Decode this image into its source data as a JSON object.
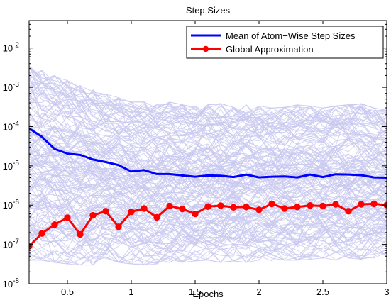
{
  "chart_data": {
    "type": "line",
    "title": "Step Sizes",
    "xlabel": "Epochs",
    "ylabel": "",
    "xlim": [
      0.2,
      3.0
    ],
    "ylim": [
      1e-08,
      0.05
    ],
    "yscale": "log",
    "grid": false,
    "legend_position": "top-right",
    "x_ticks": [
      0.5,
      1,
      1.5,
      2,
      2.5,
      3
    ],
    "x_tick_labels": [
      "0.5",
      "1",
      "1.5",
      "2",
      "2.5",
      "3"
    ],
    "y_ticks": [
      1e-08,
      1e-07,
      1e-06,
      1e-05,
      0.0001,
      0.001,
      0.01
    ],
    "y_tick_exponents": [
      "-8",
      "-7",
      "-6",
      "-5",
      "-4",
      "-3",
      "-2"
    ],
    "y_tick_base": "10",
    "x": [
      0.2,
      0.3,
      0.4,
      0.5,
      0.6,
      0.7,
      0.8,
      0.9,
      1.0,
      1.1,
      1.2,
      1.3,
      1.4,
      1.5,
      1.6,
      1.7,
      1.8,
      1.9,
      2.0,
      2.1,
      2.2,
      2.3,
      2.4,
      2.5,
      2.6,
      2.7,
      2.8,
      2.9,
      3.0
    ],
    "series": [
      {
        "name": "Mean of Atom−Wise Step Sizes",
        "color": "#0000ff",
        "marker": "none",
        "values": [
          9e-05,
          5.5e-05,
          2.7e-05,
          2.05e-05,
          1.9e-05,
          1.45e-05,
          1.25e-05,
          1.05e-05,
          7.2e-06,
          7.8e-06,
          6.2e-06,
          6.2e-06,
          5.7e-06,
          5.3e-06,
          5.7e-06,
          5.6e-06,
          5.2e-06,
          6e-06,
          5.1e-06,
          5.3e-06,
          5.4e-06,
          5.1e-06,
          6e-06,
          5.2e-06,
          6.1e-06,
          6e-06,
          5.8e-06,
          5.1e-06,
          5e-06
        ]
      },
      {
        "name": "Global Approximation",
        "color": "#ff0000",
        "marker": "circle",
        "values": [
          9e-08,
          1.9e-07,
          3.2e-07,
          4.8e-07,
          1.8e-07,
          5.5e-07,
          7e-07,
          2.8e-07,
          6.8e-07,
          8.2e-07,
          4.9e-07,
          9.5e-07,
          8e-07,
          6e-07,
          9.2e-07,
          9.7e-07,
          8.8e-07,
          9e-07,
          7.6e-07,
          1.08e-06,
          8.2e-07,
          9e-07,
          9.8e-07,
          9.5e-07,
          1.05e-06,
          7e-07,
          1.05e-06,
          1.08e-06,
          1e-06
        ]
      }
    ],
    "background_band": {
      "description": "many per-atom step size trajectories",
      "color": "#c8c8f0",
      "upper": [
        0.0028,
        0.0022,
        0.0016,
        0.0012,
        0.0009,
        0.0007,
        0.00055,
        0.00045,
        0.00035,
        0.00035,
        0.0003,
        0.00035,
        0.0003,
        0.00028,
        0.0003,
        0.00032,
        0.00026,
        0.0003,
        0.00028,
        0.00025,
        0.00026,
        0.0003,
        0.00028,
        0.00025,
        0.00028,
        0.0003,
        0.00032,
        0.00025,
        0.00022
      ],
      "lower": [
        4e-08,
        4e-08,
        3.5e-08,
        3.2e-08,
        3e-08,
        3e-08,
        3.2e-08,
        3.5e-08,
        3.2e-08,
        3e-08,
        3.2e-08,
        3.5e-08,
        3.5e-08,
        3.8e-08,
        4e-08,
        3.5e-08,
        3.8e-08,
        3.5e-08,
        4e-08,
        3.8e-08,
        4e-08,
        4e-08,
        4.2e-08,
        4.5e-08,
        4e-08,
        4.5e-08,
        4.2e-08,
        4.5e-08,
        5e-08
      ]
    }
  }
}
